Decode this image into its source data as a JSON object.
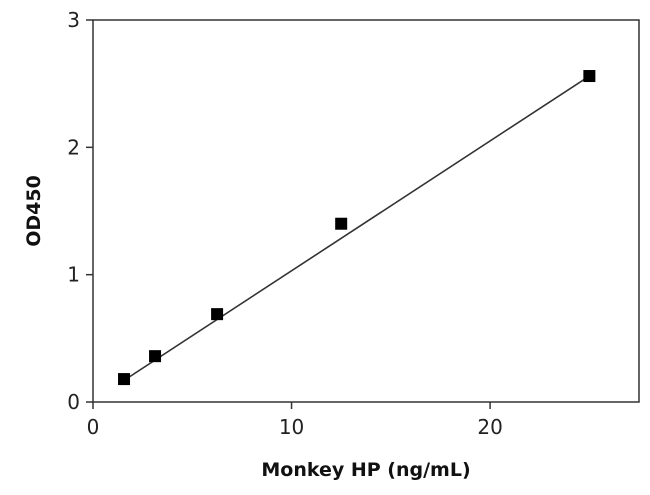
{
  "chart_data": {
    "type": "scatter",
    "title": "",
    "xlabel": "Monkey HP (ng/mL)",
    "ylabel": "OD450",
    "xlim": [
      0,
      27.5
    ],
    "ylim": [
      0,
      3
    ],
    "xticks": [
      0,
      10,
      20
    ],
    "yticks": [
      0,
      1,
      2,
      3
    ],
    "grid": false,
    "legend": "none",
    "series": [
      {
        "x": [
          1.5625,
          3.125,
          6.25,
          12.5,
          25
        ],
        "y": [
          0.18,
          0.36,
          0.69,
          1.4,
          2.56
        ],
        "marker": "square",
        "color": "#000000"
      }
    ],
    "fit_line": {
      "type": "linear",
      "x": [
        1.5625,
        25
      ],
      "y": [
        0.17,
        2.56
      ],
      "color": "#333333"
    }
  }
}
